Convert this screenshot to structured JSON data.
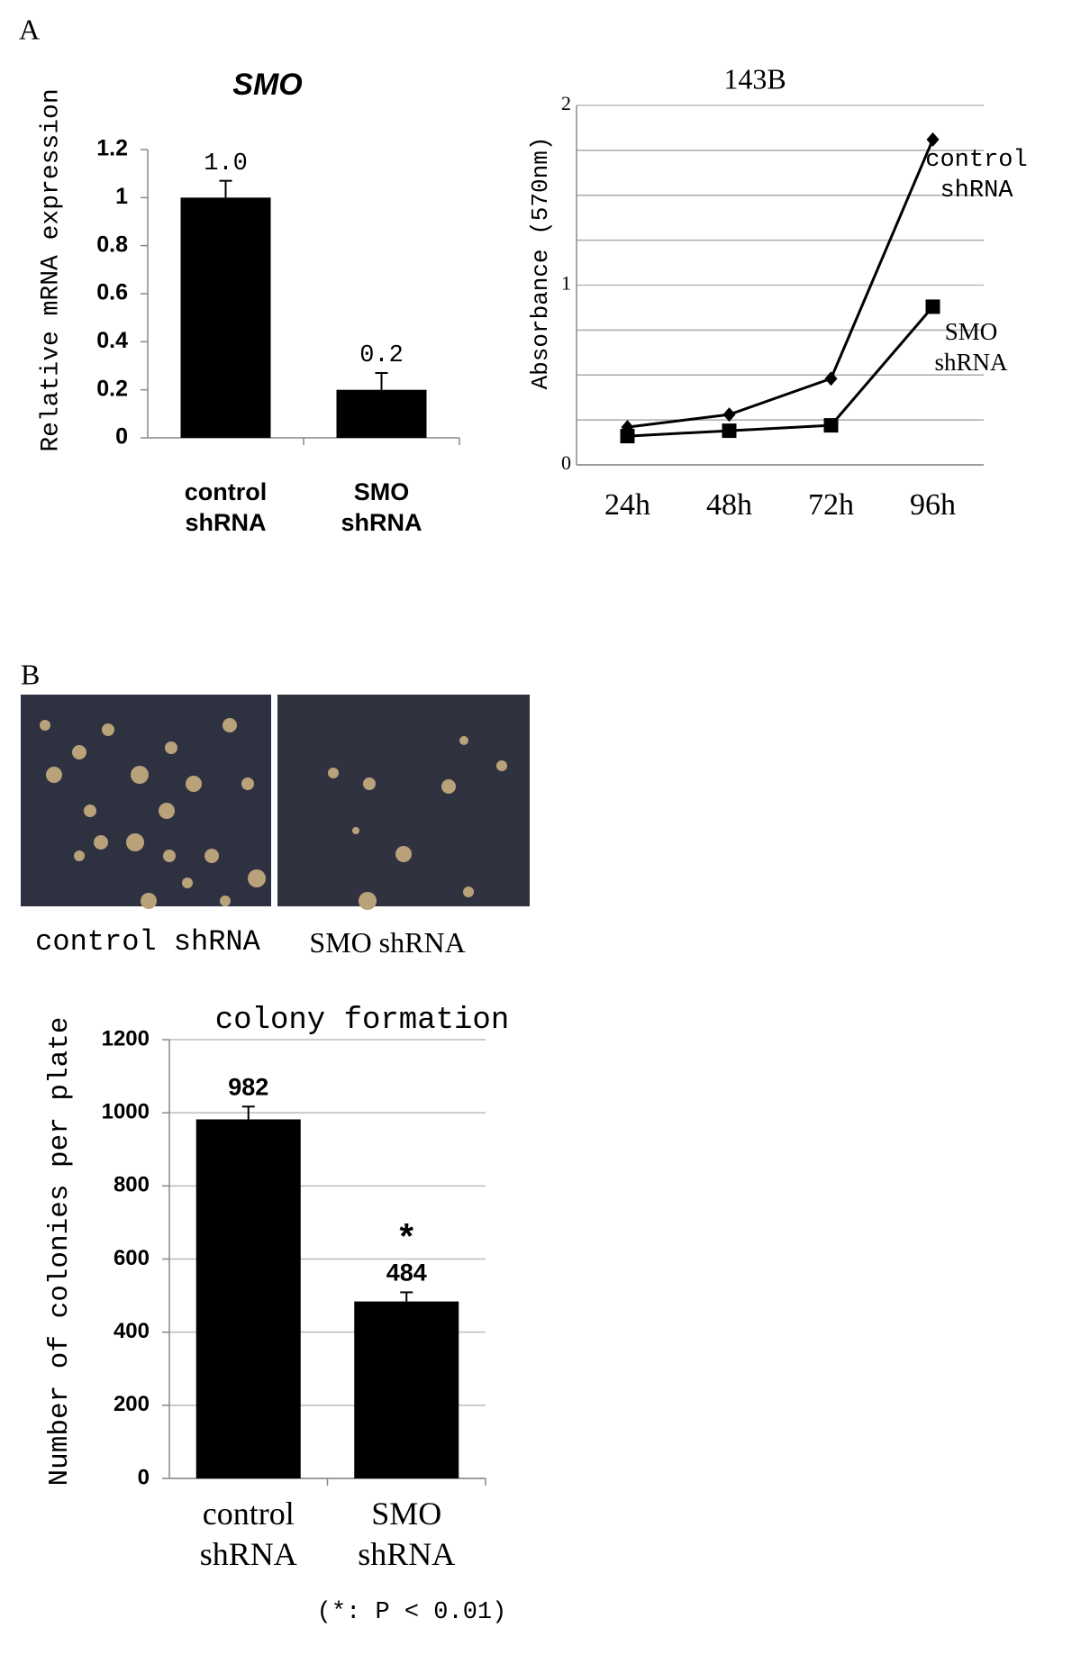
{
  "panel_labels": [
    "A",
    "B"
  ],
  "chart_data": [
    {
      "type": "bar",
      "title": "SMO",
      "ylabel": "Relative mRNA expression",
      "categories": [
        "control shRNA",
        "SMO shRNA"
      ],
      "values": [
        1.0,
        0.2
      ],
      "value_labels": [
        "1.0",
        "0.2"
      ],
      "errors": [
        0.07,
        0.07
      ],
      "color": "#000000",
      "ylim": [
        0,
        1.2
      ],
      "yticks": [
        0,
        0.2,
        0.4,
        0.6,
        0.8,
        1,
        1.2
      ],
      "grid": false
    },
    {
      "type": "line",
      "title": "143B",
      "ylabel": "Absorbance (570nm)",
      "categories": [
        "24h",
        "48h",
        "72h",
        "96h"
      ],
      "series": [
        {
          "name": "control shRNA",
          "color": "#000000",
          "marker": "diamond",
          "values": [
            0.21,
            0.28,
            0.48,
            1.81
          ]
        },
        {
          "name": "SMO shRNA",
          "color": "#000000",
          "marker": "square",
          "values": [
            0.16,
            0.19,
            0.22,
            0.88
          ]
        }
      ],
      "ylim": [
        0,
        2
      ],
      "yticks": [
        0,
        1,
        2
      ],
      "minor_yticks": [
        0.25,
        0.5,
        0.75,
        1.25,
        1.5,
        1.75
      ],
      "grid": true
    },
    {
      "type": "bar",
      "title": "colony formation",
      "ylabel": "Number of colonies per plate",
      "categories": [
        "control shRNA",
        "SMO shRNA"
      ],
      "values": [
        982,
        484
      ],
      "errors": [
        35,
        25
      ],
      "color": "#000000",
      "annotation": "*",
      "ylim": [
        0,
        1200
      ],
      "yticks": [
        0,
        200,
        400,
        600,
        800,
        1000,
        1200
      ],
      "grid": true
    }
  ],
  "image_captions": [
    "control shRNA",
    "SMO shRNA"
  ],
  "note": "(*: P < 0.01)"
}
